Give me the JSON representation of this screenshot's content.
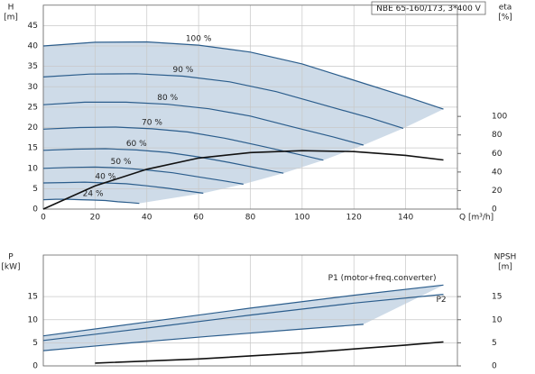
{
  "chart_data": [
    {
      "type": "line",
      "title": "NBE 65-160/173, 3*400 V",
      "ylabel": [
        "H",
        "[m]"
      ],
      "y2label": [
        "eta",
        "[%]"
      ],
      "xlabel": "Q [m³/h]",
      "xlim": [
        0,
        160
      ],
      "xticks": [
        0,
        20,
        40,
        60,
        80,
        100,
        120,
        140
      ],
      "ylim": [
        0,
        50
      ],
      "yticks": [
        0,
        5,
        10,
        15,
        20,
        25,
        30,
        35,
        40,
        45
      ],
      "y2lim": [
        0,
        220
      ],
      "y2ticks": [
        0,
        20,
        40,
        60,
        80,
        100
      ],
      "grid": true,
      "series": [
        {
          "name": "100 %",
          "color": "#2b5d8c",
          "x": [
            0,
            20,
            40,
            60,
            80,
            100,
            120,
            140,
            154.6
          ],
          "values": [
            40,
            40.9,
            41,
            40.2,
            38.5,
            35.6,
            31.6,
            27.6,
            24.5
          ]
        },
        {
          "name": "90 %",
          "color": "#2b5d8c",
          "x": [
            0,
            18,
            36,
            54,
            72,
            90,
            108,
            126,
            139.1
          ],
          "values": [
            32.4,
            33.1,
            33.2,
            32.6,
            31.2,
            28.8,
            25.6,
            22.4,
            19.8
          ]
        },
        {
          "name": "80 %",
          "color": "#2b5d8c",
          "x": [
            0,
            16,
            32,
            48,
            64,
            80,
            96,
            112,
            123.7
          ],
          "values": [
            25.6,
            26.2,
            26.2,
            25.7,
            24.6,
            22.8,
            20.2,
            17.7,
            15.7
          ]
        },
        {
          "name": "70 %",
          "color": "#2b5d8c",
          "x": [
            0,
            14,
            28,
            42,
            56,
            70,
            84,
            98,
            108.2
          ],
          "values": [
            19.6,
            20.0,
            20.1,
            19.7,
            18.9,
            17.4,
            15.5,
            13.5,
            12.0
          ]
        },
        {
          "name": "60 %",
          "color": "#2b5d8c",
          "x": [
            0,
            12,
            24,
            36,
            48,
            60,
            72,
            84,
            92.8
          ],
          "values": [
            14.4,
            14.7,
            14.8,
            14.5,
            13.9,
            12.8,
            11.4,
            9.9,
            8.8
          ]
        },
        {
          "name": "50 %",
          "color": "#2b5d8c",
          "x": [
            0,
            10,
            20,
            30,
            40,
            50,
            60,
            70,
            77.3
          ],
          "values": [
            10,
            10.2,
            10.3,
            10.1,
            9.6,
            8.9,
            7.9,
            6.9,
            6.1
          ]
        },
        {
          "name": "40 %",
          "color": "#2b5d8c",
          "x": [
            0,
            8,
            16,
            24,
            32,
            40,
            48,
            56,
            61.8
          ],
          "values": [
            6.4,
            6.5,
            6.6,
            6.4,
            6.2,
            5.7,
            5.1,
            4.4,
            3.9
          ]
        },
        {
          "name": "24 %",
          "color": "#2b5d8c",
          "x": [
            0,
            4.8,
            9.6,
            14.4,
            19.2,
            24,
            28.8,
            33.6,
            37.1
          ],
          "values": [
            2.3,
            2.4,
            2.4,
            2.3,
            2.2,
            2.1,
            1.8,
            1.6,
            1.4
          ]
        },
        {
          "color": "#111111",
          "axis": "y2",
          "x": [
            0,
            20,
            40,
            60,
            80,
            100,
            120,
            140,
            154.6
          ],
          "values": [
            0,
            25,
            43,
            55,
            61,
            63,
            62,
            58,
            53
          ]
        }
      ]
    },
    {
      "type": "line",
      "ylabel": [
        "P",
        "[kW]"
      ],
      "y2label": [
        "NPSH",
        "[m]"
      ],
      "xlim": [
        0,
        160
      ],
      "xticks": [
        0,
        20,
        40,
        60,
        80,
        100,
        120,
        140
      ],
      "ylim": [
        0,
        24
      ],
      "yticks": [
        0,
        5,
        10,
        15
      ],
      "y2lim": [
        0,
        24
      ],
      "y2ticks": [
        0,
        5,
        10,
        15
      ],
      "grid": true,
      "series": [
        {
          "name": "P1 (motor+freq.converter)",
          "color": "#2b5d8c",
          "x": [
            0,
            40,
            80,
            120,
            154.6
          ],
          "values": [
            6.5,
            9.5,
            12.5,
            15.3,
            17.5
          ]
        },
        {
          "name": "P2",
          "color": "#2b5d8c",
          "x": [
            0,
            40,
            80,
            120,
            154.6
          ],
          "values": [
            5.5,
            8.2,
            11,
            13.6,
            15.5
          ]
        },
        {
          "color": "#2b5d8c",
          "x": [
            0,
            32,
            64,
            96,
            123.7
          ],
          "values": [
            3.3,
            4.9,
            6.4,
            7.8,
            9.0
          ]
        },
        {
          "color": "#111111",
          "axis": "y2",
          "x": [
            20,
            60,
            100,
            140,
            154.6
          ],
          "values": [
            0.6,
            1.5,
            2.8,
            4.5,
            5.2
          ]
        }
      ]
    }
  ]
}
